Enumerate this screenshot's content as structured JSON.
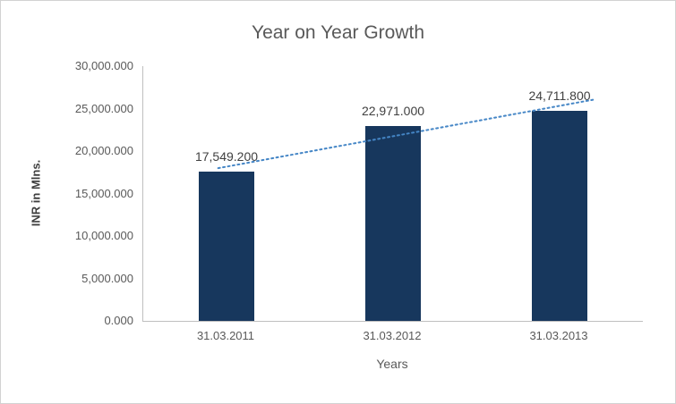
{
  "chart_data": {
    "type": "bar",
    "title": "Year on Year Growth",
    "xlabel": "Years",
    "ylabel": "INR in Mlns.",
    "categories": [
      "31.03.2011",
      "31.03.2012",
      "31.03.2013"
    ],
    "values": [
      17549.2,
      22971.0,
      24711.8
    ],
    "value_labels": [
      "17,549.200",
      "22,971.000",
      "24,711.800"
    ],
    "ylim": [
      0,
      30000
    ],
    "yticks": [
      {
        "label": "0.000",
        "value": 0
      },
      {
        "label": "5,000.000",
        "value": 5000
      },
      {
        "label": "10,000.000",
        "value": 10000
      },
      {
        "label": "15,000.000",
        "value": 15000
      },
      {
        "label": "20,000.000",
        "value": 20000
      },
      {
        "label": "25,000.000",
        "value": 25000
      },
      {
        "label": "30,000.000",
        "value": 30000
      }
    ],
    "grid": false,
    "legend": false,
    "bar_color": "#17375D",
    "trendline": {
      "type": "linear",
      "style": "dotted",
      "color": "#4586C6"
    },
    "axis_color": "#BFBFBF",
    "text_color": "#595959"
  }
}
